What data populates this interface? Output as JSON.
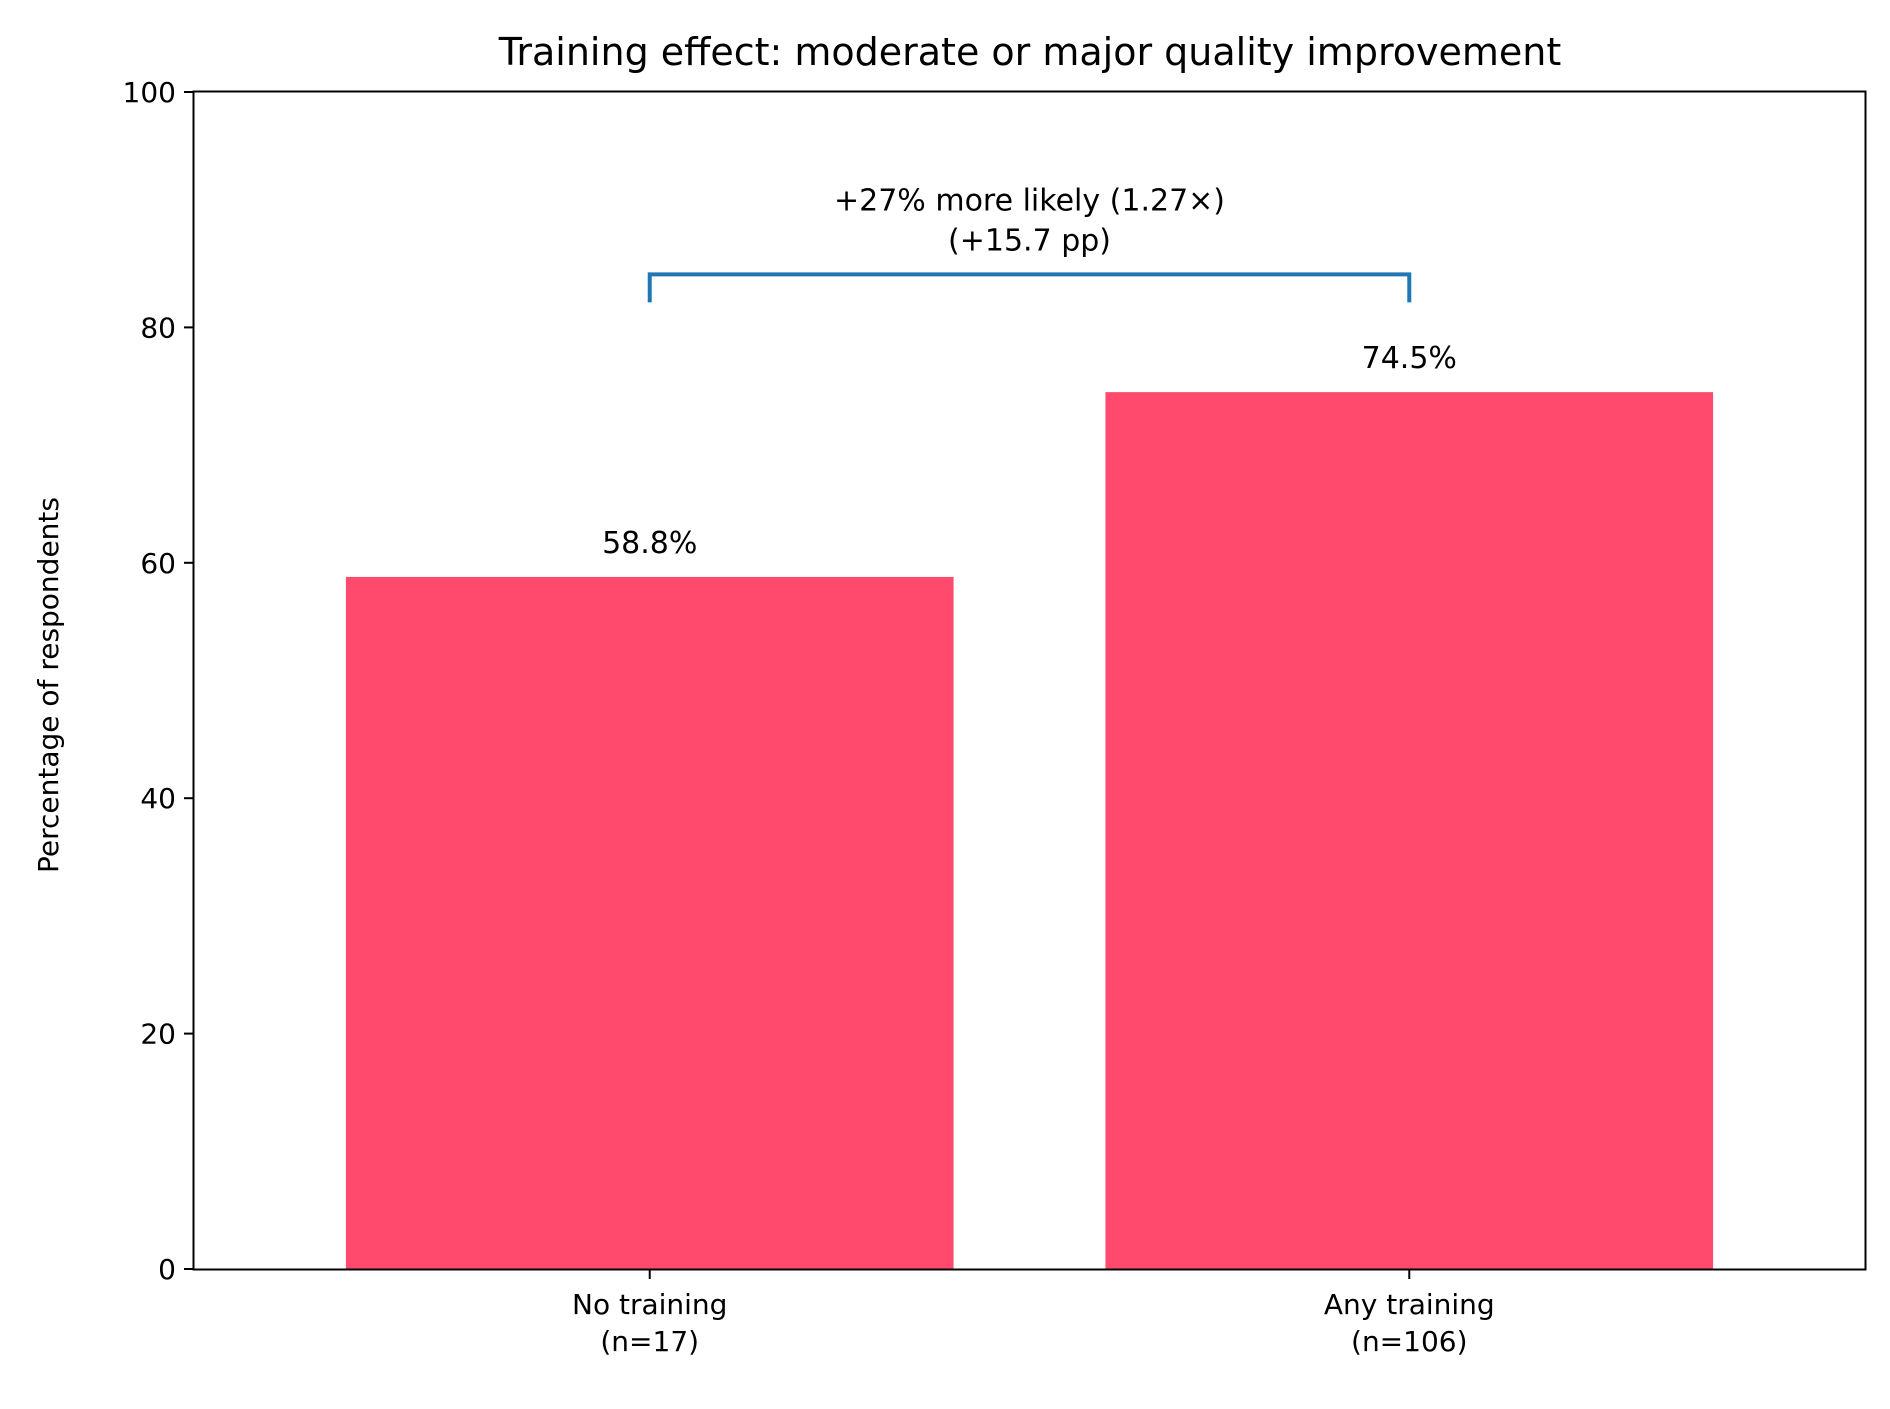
{
  "chart_data": {
    "type": "bar",
    "title": "Training effect: moderate or major quality improvement",
    "xlabel": "",
    "ylabel": "Percentage of respondents",
    "ylim": [
      0,
      100
    ],
    "yticks": [
      0,
      20,
      40,
      60,
      80,
      100
    ],
    "yticks_labels": [
      "0",
      "20",
      "40",
      "60",
      "80",
      "100"
    ],
    "categories": [
      {
        "line1": "No training",
        "line2": "(n=17)"
      },
      {
        "line1": "Any training",
        "line2": "(n=106)"
      }
    ],
    "values": [
      58.8,
      74.5
    ],
    "value_labels": [
      "58.8%",
      "74.5%"
    ],
    "bar_color": "#ff4a6e",
    "comparison": {
      "bracket_value": 84.5,
      "bracket_color": "#1f77b4",
      "line1": "+27% more likely (1.27×)",
      "line2": "(+15.7 pp)"
    },
    "grid": false,
    "legend": "none"
  }
}
